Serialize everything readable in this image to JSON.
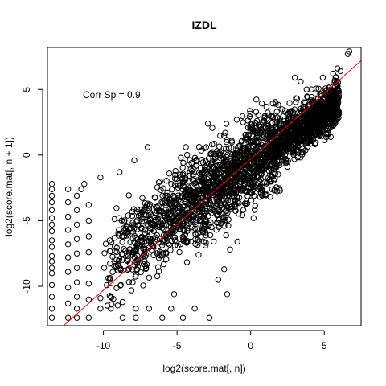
{
  "chart_data": {
    "type": "scatter",
    "title": "IZDL",
    "xlabel": "log2(score.mat[, n])",
    "ylabel": "log2(score.mat[, n + 1])",
    "xlim": [
      -13.8,
      7.5
    ],
    "ylim": [
      -13.0,
      8.2
    ],
    "xticks": [
      -10,
      -5,
      0,
      5
    ],
    "yticks": [
      -10,
      -5,
      0,
      5
    ],
    "grid": false,
    "annotation": "Corr Sp = 0.9",
    "reference_line": {
      "color": "#ff0000",
      "slope": 1.0,
      "intercept": -0.3
    },
    "point_color": "#000000",
    "density_band": {
      "slope": 0.78,
      "intercept": -0.6,
      "x_range": [
        -10,
        6
      ],
      "spread": 1.6
    },
    "points": [
      {
        "x": 6.7,
        "y": 7.9
      },
      {
        "x": 6.6,
        "y": 7.7
      },
      {
        "x": 5.9,
        "y": 6.6
      },
      {
        "x": 6.1,
        "y": 6.4
      },
      {
        "x": 5.6,
        "y": 6.2
      },
      {
        "x": 4.9,
        "y": 5.9
      },
      {
        "x": 3.0,
        "y": 5.9
      },
      {
        "x": 3.4,
        "y": 5.6
      },
      {
        "x": -2.9,
        "y": 2.4
      },
      {
        "x": -4.4,
        "y": 0.6
      },
      {
        "x": -7.0,
        "y": 0.6
      },
      {
        "x": -8.9,
        "y": -1.3
      },
      {
        "x": -7.9,
        "y": -0.4
      },
      {
        "x": -11.3,
        "y": -2.2
      },
      {
        "x": -11.5,
        "y": -2.6
      },
      {
        "x": -10.2,
        "y": -1.7
      },
      {
        "x": -13.5,
        "y": -2.2
      },
      {
        "x": -13.5,
        "y": -2.6
      },
      {
        "x": -13.5,
        "y": -3.1
      },
      {
        "x": -13.5,
        "y": -3.6
      },
      {
        "x": -13.5,
        "y": -4.2
      },
      {
        "x": -13.5,
        "y": -4.8
      },
      {
        "x": -13.5,
        "y": -5.3
      },
      {
        "x": -13.5,
        "y": -5.8
      },
      {
        "x": -13.5,
        "y": -6.5
      },
      {
        "x": -13.5,
        "y": -7.0
      },
      {
        "x": -13.5,
        "y": -7.7
      },
      {
        "x": -13.5,
        "y": -8.1
      },
      {
        "x": -13.5,
        "y": -8.6
      },
      {
        "x": -13.5,
        "y": -9.0
      },
      {
        "x": -13.5,
        "y": -9.9
      },
      {
        "x": -13.5,
        "y": -10.8
      },
      {
        "x": -13.5,
        "y": -11.7
      },
      {
        "x": -13.5,
        "y": -12.4
      },
      {
        "x": -12.4,
        "y": -2.6
      },
      {
        "x": -12.4,
        "y": -3.6
      },
      {
        "x": -12.4,
        "y": -4.7
      },
      {
        "x": -12.4,
        "y": -5.7
      },
      {
        "x": -12.4,
        "y": -6.8
      },
      {
        "x": -12.4,
        "y": -7.8
      },
      {
        "x": -12.4,
        "y": -8.9
      },
      {
        "x": -12.4,
        "y": -10.1
      },
      {
        "x": -12.4,
        "y": -11.3
      },
      {
        "x": -12.4,
        "y": -12.4
      },
      {
        "x": -11.8,
        "y": -3.1
      },
      {
        "x": -11.8,
        "y": -4.2
      },
      {
        "x": -11.8,
        "y": -5.3
      },
      {
        "x": -11.8,
        "y": -6.4
      },
      {
        "x": -11.8,
        "y": -7.5
      },
      {
        "x": -11.8,
        "y": -8.6
      },
      {
        "x": -11.8,
        "y": -9.7
      },
      {
        "x": -11.8,
        "y": -10.8
      },
      {
        "x": -11.8,
        "y": -11.7
      },
      {
        "x": -11.8,
        "y": -12.4
      },
      {
        "x": -11.0,
        "y": -3.8
      },
      {
        "x": -11.0,
        "y": -5.0
      },
      {
        "x": -11.0,
        "y": -6.2
      },
      {
        "x": -11.0,
        "y": -7.4
      },
      {
        "x": -11.0,
        "y": -8.6
      },
      {
        "x": -11.0,
        "y": -9.8
      },
      {
        "x": -11.0,
        "y": -11.0
      },
      {
        "x": -11.0,
        "y": -12.4
      },
      {
        "x": -10.2,
        "y": -10.9
      },
      {
        "x": -10.2,
        "y": -11.7
      },
      {
        "x": -9.5,
        "y": -10.8
      },
      {
        "x": -9.5,
        "y": -11.7
      },
      {
        "x": -8.7,
        "y": -11.2
      },
      {
        "x": -8.7,
        "y": -12.4
      },
      {
        "x": -7.8,
        "y": -11.7
      },
      {
        "x": -7.8,
        "y": -12.4
      },
      {
        "x": -6.9,
        "y": -11.7
      },
      {
        "x": -6.0,
        "y": -12.4
      },
      {
        "x": -5.4,
        "y": -11.7
      },
      {
        "x": -4.6,
        "y": -12.4
      },
      {
        "x": -3.8,
        "y": -11.7
      },
      {
        "x": -2.8,
        "y": -12.4
      },
      {
        "x": -1.6,
        "y": -10.6
      },
      {
        "x": -5.2,
        "y": -10.6
      },
      {
        "x": -2.2,
        "y": -9.5
      },
      {
        "x": -1.8,
        "y": -8.7
      },
      {
        "x": -1.4,
        "y": -7.2
      },
      {
        "x": -0.9,
        "y": -6.6
      },
      {
        "x": 0.2,
        "y": -4.8
      },
      {
        "x": 1.0,
        "y": -3.0
      },
      {
        "x": 2.4,
        "y": -0.6
      },
      {
        "x": 4.2,
        "y": 2.6
      },
      {
        "x": 5.2,
        "y": 4.0
      },
      {
        "x": 3.8,
        "y": 5.0
      }
    ]
  }
}
